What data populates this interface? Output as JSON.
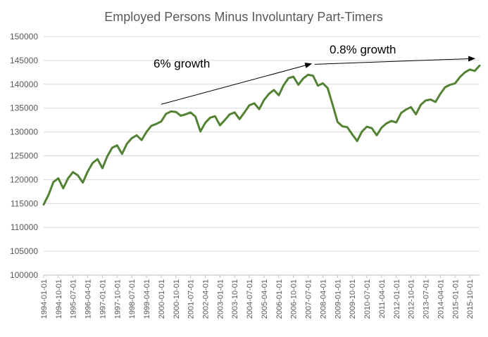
{
  "chart_data": {
    "type": "line",
    "title": "Employed Persons Minus Involuntary Part-Timers",
    "xlabel": "",
    "ylabel": "",
    "ylim": [
      100000,
      150000
    ],
    "y_ticks": [
      100000,
      105000,
      110000,
      115000,
      120000,
      125000,
      130000,
      135000,
      140000,
      145000,
      150000
    ],
    "x_range": [
      "1994-01-01",
      "2016-04-01"
    ],
    "x_tick_labels": [
      "1994-01-01",
      "1994-10-01",
      "1995-07-01",
      "1996-04-01",
      "1997-01-01",
      "1997-10-01",
      "1998-07-01",
      "1999-04-01",
      "2000-01-01",
      "2000-10-01",
      "2001-07-01",
      "2002-04-01",
      "2003-01-01",
      "2003-10-01",
      "2004-07-01",
      "2005-04-01",
      "2006-01-01",
      "2006-10-01",
      "2007-07-01",
      "2008-04-01",
      "2009-01-01",
      "2009-10-01",
      "2010-07-01",
      "2011-04-01",
      "2012-01-01",
      "2012-10-01",
      "2013-07-01",
      "2014-04-01",
      "2015-01-01",
      "2015-10-01"
    ],
    "grid": true,
    "legend": "none",
    "series_color": "#548235",
    "series": [
      {
        "x": [
          "1994-01-01",
          "1994-04-01",
          "1994-07-01",
          "1994-10-01",
          "1995-01-01",
          "1995-04-01",
          "1995-07-01",
          "1995-10-01",
          "1996-01-01",
          "1996-04-01",
          "1996-07-01",
          "1996-10-01",
          "1997-01-01",
          "1997-04-01",
          "1997-07-01",
          "1997-10-01",
          "1998-01-01",
          "1998-04-01",
          "1998-07-01",
          "1998-10-01",
          "1999-01-01",
          "1999-04-01",
          "1999-07-01",
          "1999-10-01",
          "2000-01-01",
          "2000-04-01",
          "2000-07-01",
          "2000-10-01",
          "2001-01-01",
          "2001-04-01",
          "2001-07-01",
          "2001-10-01",
          "2002-01-01",
          "2002-04-01",
          "2002-07-01",
          "2002-10-01",
          "2003-01-01",
          "2003-04-01",
          "2003-07-01",
          "2003-10-01",
          "2004-01-01",
          "2004-04-01",
          "2004-07-01",
          "2004-10-01",
          "2005-01-01",
          "2005-04-01",
          "2005-07-01",
          "2005-10-01",
          "2006-01-01",
          "2006-04-01",
          "2006-07-01",
          "2006-10-01",
          "2007-01-01",
          "2007-04-01",
          "2007-07-01",
          "2007-10-01",
          "2008-01-01",
          "2008-04-01",
          "2008-07-01",
          "2008-10-01",
          "2009-01-01",
          "2009-04-01",
          "2009-07-01",
          "2009-10-01",
          "2010-01-01",
          "2010-04-01",
          "2010-07-01",
          "2010-10-01",
          "2011-01-01",
          "2011-04-01",
          "2011-07-01",
          "2011-10-01",
          "2012-01-01",
          "2012-04-01",
          "2012-07-01",
          "2012-10-01",
          "2013-01-01",
          "2013-04-01",
          "2013-07-01",
          "2013-10-01",
          "2014-01-01",
          "2014-04-01",
          "2014-07-01",
          "2014-10-01",
          "2015-01-01",
          "2015-04-01",
          "2015-07-01",
          "2015-10-01",
          "2016-01-01",
          "2016-04-01"
        ],
        "values": [
          114800,
          116800,
          119500,
          120300,
          118200,
          120300,
          121600,
          120900,
          119400,
          121700,
          123500,
          124300,
          122400,
          124900,
          126700,
          127200,
          125400,
          127500,
          128700,
          129300,
          128300,
          130000,
          131300,
          131700,
          132200,
          133800,
          134300,
          134200,
          133400,
          133700,
          134100,
          133200,
          130100,
          131900,
          133000,
          133300,
          131400,
          132500,
          133700,
          134100,
          132700,
          134100,
          135600,
          136000,
          134800,
          136700,
          138000,
          138800,
          137700,
          139800,
          141300,
          141600,
          139900,
          141200,
          142000,
          141800,
          139700,
          140200,
          139200,
          135700,
          132100,
          131200,
          131000,
          129500,
          128100,
          130100,
          131100,
          130800,
          129300,
          130900,
          131800,
          132300,
          132000,
          134000,
          134700,
          135200,
          133700,
          135700,
          136600,
          136800,
          136300,
          138000,
          139400,
          139900,
          140200,
          141500,
          142500,
          143100,
          142800,
          143900
        ]
      }
    ],
    "annotations": [
      {
        "text": "6% growth",
        "arrow_from": [
          "2000-01-01",
          135800
        ],
        "arrow_to": [
          "2007-09-01",
          144300
        ]
      },
      {
        "text": "0.8% growth",
        "arrow_from": [
          "2007-11-01",
          144200
        ],
        "arrow_to": [
          "2016-01-01",
          145400
        ]
      }
    ]
  }
}
